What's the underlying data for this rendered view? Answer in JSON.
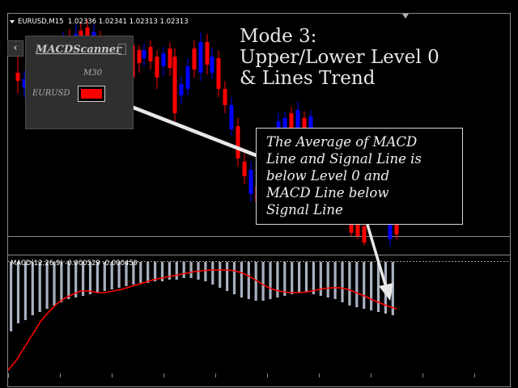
{
  "chart_header": {
    "symbol_label": "EURUSD,M15",
    "ohlc_values": "1.02336 1.02341 1.02313 1.02313"
  },
  "mode_title": {
    "lines": [
      "Mode 3:",
      "Upper/Lower Level 0",
      "& Lines Trend"
    ]
  },
  "scanner": {
    "title": "MACDScanner",
    "timeframe": "M30",
    "symbol": "EURUSD",
    "signal_color": "#ff0000"
  },
  "hide_button_icon": "chevron-left-icon",
  "callout": {
    "lines": [
      "The Average of MACD",
      "Line and Signal Line is",
      "below Level 0  and",
      "MACD Line below",
      "Signal Line"
    ]
  },
  "macd_panel": {
    "label": "MACD(12,26,9) -0.000529 -0.000459"
  },
  "colors": {
    "bull_candle": "#0000ff",
    "bear_candle": "#ff0000",
    "histogram": "#a8b0c0",
    "signal_line": "#ff0000",
    "callout_arrow": "#e8e8e8"
  }
}
